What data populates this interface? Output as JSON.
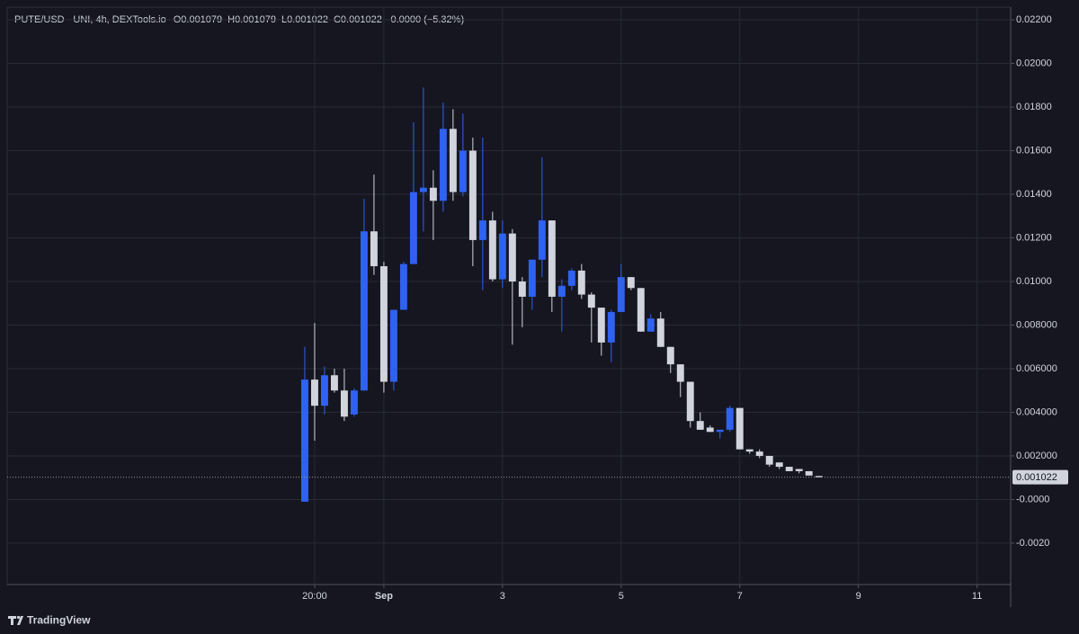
{
  "chart_data": {
    "type": "candlestick",
    "title": "PUTE/USD - UNI, 4h, DEXTools.io",
    "legend_text": [
      "O0.001079",
      "H0.001079",
      "L0.001022",
      "C0.001022",
      "-0.0000 (−5.32%)"
    ],
    "open": [
      -0.0001,
      0.0055,
      0.0043,
      0.0057,
      0.005,
      0.0039,
      0.005,
      0.0123,
      0.0107,
      0.0054,
      0.0087,
      0.0108,
      0.0141,
      0.0143,
      0.0137,
      0.017,
      0.0141,
      0.016,
      0.0119,
      0.0128,
      0.0101,
      0.0122,
      0.01,
      0.0093,
      0.011,
      0.0128,
      0.0093,
      0.0098,
      0.0105,
      0.0094,
      0.0088,
      0.0072,
      0.0086,
      0.0102,
      0.0097,
      0.0077,
      0.0083,
      0.007,
      0.0062,
      0.0054,
      0.0036,
      0.0033,
      0.0031,
      0.0032,
      0.0042,
      0.0023,
      0.0022,
      0.002,
      0.0017,
      0.0015,
      0.0014,
      0.0013,
      0.001079
    ],
    "high": [
      0.007,
      0.0081,
      0.0061,
      0.006,
      0.006,
      0.0051,
      0.0138,
      0.0149,
      0.0109,
      0.0087,
      0.0109,
      0.0173,
      0.0189,
      0.0151,
      0.0182,
      0.0179,
      0.0177,
      0.0166,
      0.0166,
      0.0132,
      0.0128,
      0.0124,
      0.0102,
      0.011,
      0.0157,
      0.0128,
      0.0101,
      0.0106,
      0.0108,
      0.0095,
      0.0088,
      0.0087,
      0.0108,
      0.0102,
      0.0097,
      0.0085,
      0.0086,
      0.007,
      0.0062,
      0.0054,
      0.004,
      0.0034,
      0.0032,
      0.0043,
      0.0042,
      0.0023,
      0.0023,
      0.002,
      0.0017,
      0.0015,
      0.0014,
      0.0013,
      0.001079
    ],
    "low": [
      -0.0001,
      0.0027,
      0.0039,
      0.0049,
      0.0036,
      0.0038,
      0.005,
      0.0103,
      0.0049,
      0.005,
      0.0087,
      0.0108,
      0.0123,
      0.0119,
      0.0132,
      0.0137,
      0.0139,
      0.0107,
      0.0096,
      0.01,
      0.0097,
      0.0071,
      0.0079,
      0.0087,
      0.0102,
      0.0086,
      0.0077,
      0.0096,
      0.0092,
      0.0072,
      0.0066,
      0.0063,
      0.0086,
      0.0096,
      0.0077,
      0.0077,
      0.007,
      0.0058,
      0.0047,
      0.0033,
      0.0032,
      0.0031,
      0.0028,
      0.0031,
      0.0023,
      0.0021,
      0.0019,
      0.0015,
      0.0014,
      0.0013,
      0.0012,
      0.0011,
      0.001022
    ],
    "close": [
      0.0055,
      0.0043,
      0.0057,
      0.005,
      0.0038,
      0.005,
      0.0123,
      0.0107,
      0.0054,
      0.0087,
      0.0108,
      0.0141,
      0.0143,
      0.0137,
      0.017,
      0.0141,
      0.016,
      0.0119,
      0.0128,
      0.0101,
      0.0122,
      0.01,
      0.0093,
      0.011,
      0.0128,
      0.0093,
      0.0098,
      0.0105,
      0.0094,
      0.0088,
      0.0072,
      0.0086,
      0.0102,
      0.0097,
      0.0077,
      0.0083,
      0.007,
      0.0062,
      0.0054,
      0.0036,
      0.0032,
      0.0031,
      0.0032,
      0.0042,
      0.0023,
      0.0022,
      0.002,
      0.0016,
      0.0015,
      0.0013,
      0.0013,
      0.0011,
      0.001022
    ],
    "up_color": "#2f62f0",
    "down_color": "#d1d4dc",
    "last_price": 0.001022,
    "xlim": [
      -30.1,
      71.4
    ],
    "xticks": [
      {
        "value": 1,
        "label": "20:00"
      },
      {
        "value": 8,
        "label": "Sep"
      },
      {
        "value": 20,
        "label": "3"
      },
      {
        "value": 32,
        "label": "5"
      },
      {
        "value": 44,
        "label": "7"
      },
      {
        "value": 56,
        "label": "9"
      },
      {
        "value": 68,
        "label": "11"
      }
    ],
    "ylim": [
      -0.0039,
      0.02258
    ],
    "yticks": [
      {
        "value": 0.022,
        "label": "0.02200"
      },
      {
        "value": 0.02,
        "label": "0.02000"
      },
      {
        "value": 0.018,
        "label": "0.01800"
      },
      {
        "value": 0.016,
        "label": "0.01600"
      },
      {
        "value": 0.014,
        "label": "0.01400"
      },
      {
        "value": 0.012,
        "label": "0.01200"
      },
      {
        "value": 0.01,
        "label": "0.01000"
      },
      {
        "value": 0.008,
        "label": "0.008000"
      },
      {
        "value": 0.006,
        "label": "0.006000"
      },
      {
        "value": 0.004,
        "label": "0.004000"
      },
      {
        "value": 0.002,
        "label": "0.002000"
      },
      {
        "value": 0,
        "label": "-0.0000"
      },
      {
        "value": -0.002,
        "label": "-0.0020"
      }
    ],
    "grid": true,
    "brand": "TradingView"
  }
}
